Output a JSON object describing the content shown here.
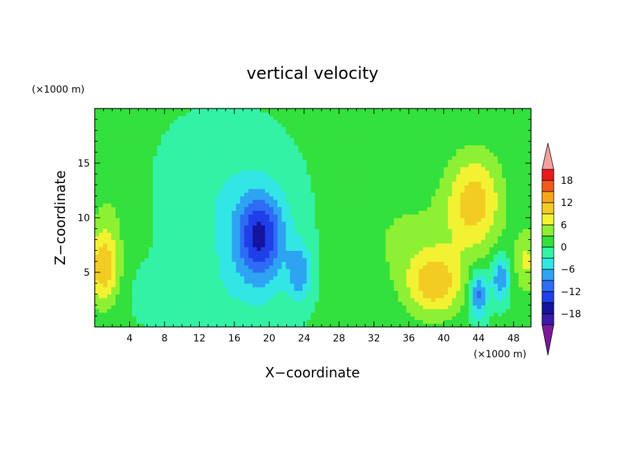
{
  "chart_data": {
    "type": "heatmap",
    "title": "vertical velocity",
    "xlabel": "X−coordinate",
    "ylabel": "Z−coordinate",
    "x_unit": "(×1000 m)",
    "y_unit": "(×1000 m)",
    "xlim": [
      0,
      50
    ],
    "ylim": [
      0,
      20
    ],
    "x_ticks": [
      4,
      8,
      12,
      16,
      20,
      24,
      28,
      32,
      36,
      40,
      44,
      48
    ],
    "y_ticks": [
      5,
      10,
      15
    ],
    "grid": false,
    "colorbar": {
      "placement": "right",
      "levels": [
        -21,
        -18,
        -15,
        -12,
        -9,
        -6,
        -3,
        0,
        3,
        6,
        9,
        12,
        15,
        18,
        21
      ],
      "tick_labels": [
        -18,
        -12,
        -6,
        0,
        6,
        12,
        18
      ],
      "colors": [
        "#7a1a9a",
        "#3b1aa5",
        "#1414a0",
        "#1f3fe8",
        "#2e6cf5",
        "#2ea3f2",
        "#33e6e6",
        "#33f2a6",
        "#33e03d",
        "#8ef033",
        "#f2f233",
        "#f2cc22",
        "#f5a61a",
        "#f25a1a",
        "#e81a1a",
        "#f5a0a0"
      ],
      "extend": "both"
    },
    "features": [
      {
        "x": 19,
        "z": 8.5,
        "sx": 2.6,
        "sz": 3.8,
        "amp": -12
      },
      {
        "x": 18.5,
        "z": 6,
        "sx": 4.5,
        "sz": 5.5,
        "amp": -4
      },
      {
        "x": 15,
        "z": 12,
        "sx": 7,
        "sz": 6.5,
        "amp": -3
      },
      {
        "x": 23.5,
        "z": 5,
        "sx": 1.3,
        "sz": 2.6,
        "amp": -8
      },
      {
        "x": 44,
        "z": 3,
        "sx": 1.0,
        "sz": 2.2,
        "amp": -11
      },
      {
        "x": 46.5,
        "z": 4.5,
        "sx": 1.0,
        "sz": 2.0,
        "amp": -10
      },
      {
        "x": 43.5,
        "z": 11.5,
        "sx": 3.2,
        "sz": 4.5,
        "amp": 10
      },
      {
        "x": 39,
        "z": 4,
        "sx": 3.2,
        "sz": 3.0,
        "amp": 10
      },
      {
        "x": 36,
        "z": 8,
        "sx": 6,
        "sz": 5,
        "amp": 3
      },
      {
        "x": 1,
        "z": 5.5,
        "sx": 1.8,
        "sz": 3.5,
        "amp": 11
      },
      {
        "x": 49.5,
        "z": 6,
        "sx": 1.4,
        "sz": 3,
        "amp": 6
      },
      {
        "x": 2,
        "z": 12,
        "sx": 3,
        "sz": 5,
        "amp": 2
      },
      {
        "x": 10,
        "z": 3,
        "sx": 6,
        "sz": 3,
        "amp": -2
      }
    ]
  }
}
